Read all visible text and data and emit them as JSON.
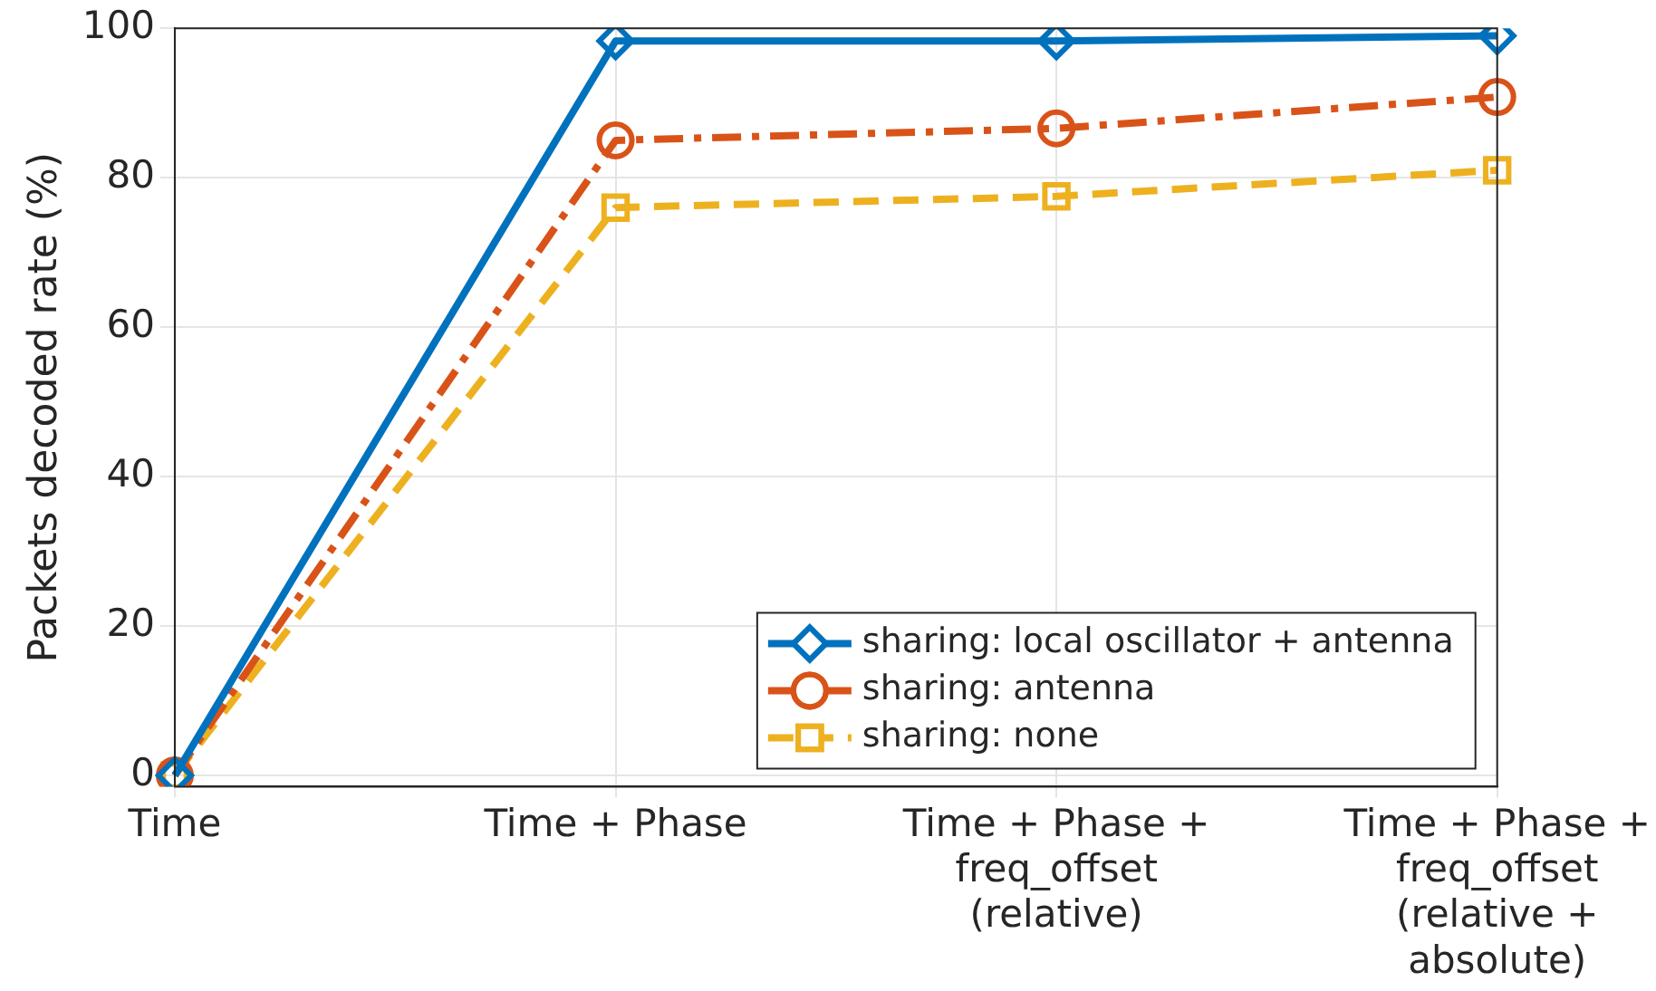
{
  "chart_data": {
    "type": "line",
    "ylabel": "Packets decoded rate (%)",
    "categories": [
      "Time",
      "Time + Phase",
      "Time + Phase + freq_offset (relative)",
      "Time + Phase + freq_offset (relative + absolute)"
    ],
    "series": [
      {
        "name": "sharing: local oscillator + antenna",
        "color": "#0072bd",
        "values": [
          0,
          98.3,
          98.3,
          99
        ],
        "marker": "diamond",
        "line_style": "solid"
      },
      {
        "name": "sharing: antenna",
        "color": "#d95319",
        "values": [
          0,
          85,
          86.6,
          90.8
        ],
        "marker": "circle",
        "line_style": "dashdot"
      },
      {
        "name": "sharing: none",
        "color": "#edb120",
        "values": [
          0,
          76,
          77.5,
          81
        ],
        "marker": "square",
        "line_style": "dashed"
      }
    ],
    "ylim": [
      -1.5,
      100
    ],
    "yticks": [
      0,
      20,
      40,
      60,
      80,
      100
    ],
    "grid": true,
    "legend": "bottom right"
  }
}
